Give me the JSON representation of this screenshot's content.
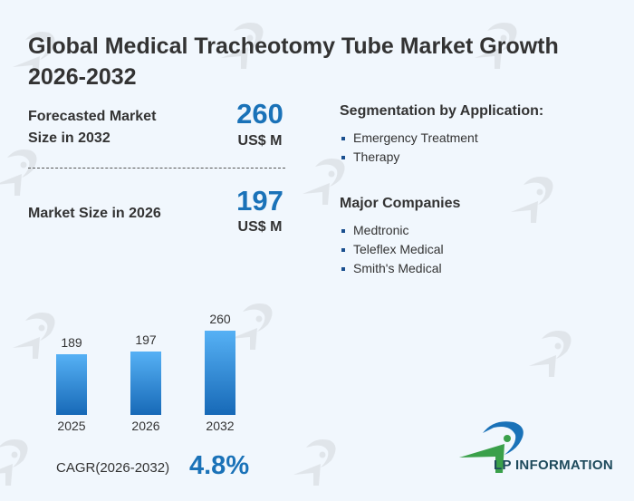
{
  "title": "Global Medical Tracheotomy Tube Market Growth 2026-2032",
  "forecast": {
    "label": "Forecasted Market Size in 2032",
    "value": "260",
    "unit": "US$ M"
  },
  "current": {
    "label": "Market Size in 2026",
    "value": "197",
    "unit": "US$ M"
  },
  "segmentation": {
    "title": "Segmentation by Application:",
    "items": [
      "Emergency Treatment",
      "Therapy"
    ]
  },
  "companies": {
    "title": "Major Companies",
    "items": [
      "Medtronic",
      "Teleflex Medical",
      "Smith's Medical"
    ]
  },
  "chart_data": {
    "type": "bar",
    "categories": [
      "2025",
      "2026",
      "2032"
    ],
    "values": [
      189,
      197,
      260
    ],
    "labels": [
      "189",
      "197",
      "260"
    ]
  },
  "cagr": {
    "label": "CAGR(2026-2032)",
    "value": "4.8%"
  },
  "brand": {
    "name": "LP INFORMATION",
    "watermark": "LP INFORMATION",
    "colors": {
      "accent": "#1a72b8",
      "green": "#3aa04a"
    }
  }
}
